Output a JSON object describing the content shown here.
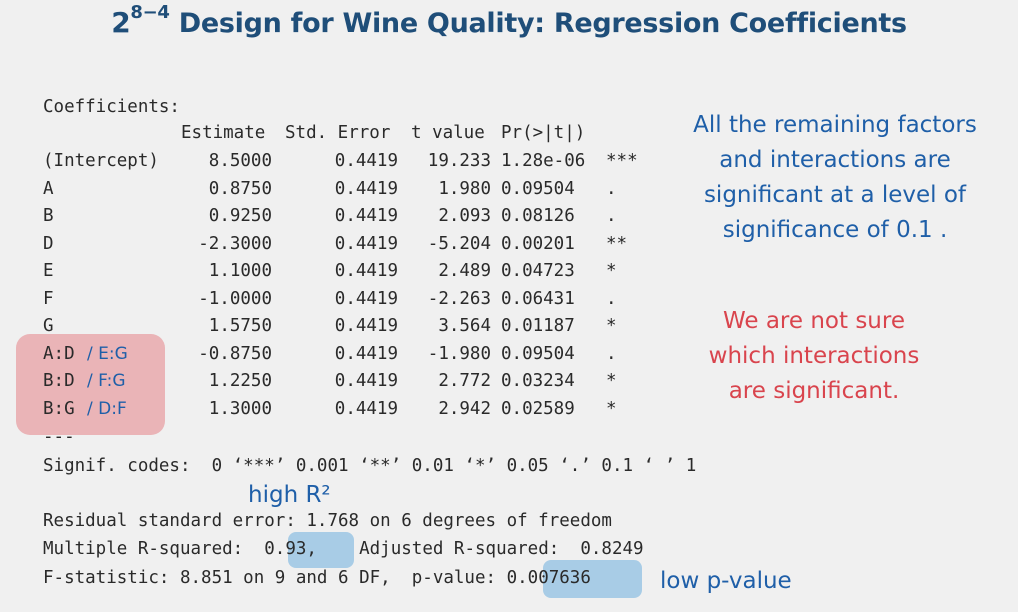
{
  "title": {
    "base": "2",
    "exponent": "8−4",
    "text": " Design for Wine Quality: Regression Coefficients"
  },
  "coef_header": "Coefficients:",
  "columns": [
    "Estimate",
    "Std. Error",
    "t value",
    "Pr(>|t|)"
  ],
  "rows": [
    {
      "term": "(Intercept)",
      "alias": "",
      "estimate": "8.5000",
      "se": "0.4419",
      "t": "19.233",
      "p": "1.28e-06",
      "sig": "***"
    },
    {
      "term": "A",
      "alias": "",
      "estimate": "0.8750",
      "se": "0.4419",
      "t": "1.980",
      "p": "0.09504",
      "sig": "."
    },
    {
      "term": "B",
      "alias": "",
      "estimate": "0.9250",
      "se": "0.4419",
      "t": "2.093",
      "p": "0.08126",
      "sig": "."
    },
    {
      "term": "D",
      "alias": "",
      "estimate": "-2.3000",
      "se": "0.4419",
      "t": "-5.204",
      "p": "0.00201",
      "sig": "**"
    },
    {
      "term": "E",
      "alias": "",
      "estimate": "1.1000",
      "se": "0.4419",
      "t": "2.489",
      "p": "0.04723",
      "sig": "*"
    },
    {
      "term": "F",
      "alias": "",
      "estimate": "-1.0000",
      "se": "0.4419",
      "t": "-2.263",
      "p": "0.06431",
      "sig": "."
    },
    {
      "term": "G",
      "alias": "",
      "estimate": "1.5750",
      "se": "0.4419",
      "t": "3.564",
      "p": "0.01187",
      "sig": "*"
    },
    {
      "term": "A:D",
      "alias": "/ E:G",
      "estimate": "-0.8750",
      "se": "0.4419",
      "t": "-1.980",
      "p": "0.09504",
      "sig": "."
    },
    {
      "term": "B:D",
      "alias": "/ F:G",
      "estimate": "1.2250",
      "se": "0.4419",
      "t": "2.772",
      "p": "0.03234",
      "sig": "*"
    },
    {
      "term": "B:G",
      "alias": "/ D:F",
      "estimate": "1.3000",
      "se": "0.4419",
      "t": "2.942",
      "p": "0.02589",
      "sig": "*"
    }
  ],
  "separator": "---",
  "signif_codes": "Signif. codes:  0 ‘***’ 0.001 ‘**’ 0.01 ‘*’ 0.05 ‘.’ 0.1 ‘ ’ 1",
  "residual_line": "Residual standard error: 1.768 on 6 degrees of freedom",
  "r2_prefix": "Multiple R-squared:  ",
  "r2_value": "0.93,",
  "adj_r2": "Adjusted R-squared:  0.8249",
  "f_prefix": "F-statistic: 8.851 on 9 and 6 DF,  p-value: ",
  "p_value": "0.007636",
  "notes": {
    "significant": [
      "All the remaining factors",
      "and interactions are",
      "significant at a level of",
      "significance of 0.1 ."
    ],
    "unsure": [
      "We are not sure",
      "which interactions",
      "are significant."
    ],
    "high_r2": "high R²",
    "low_p": "low p-value"
  },
  "colors": {
    "title": "#1f4e79",
    "blue_note": "#1f5fa8",
    "red_note": "#d9444d",
    "pink_highlight": "#e9a9ad",
    "blue_highlight": "#a8cce6"
  }
}
